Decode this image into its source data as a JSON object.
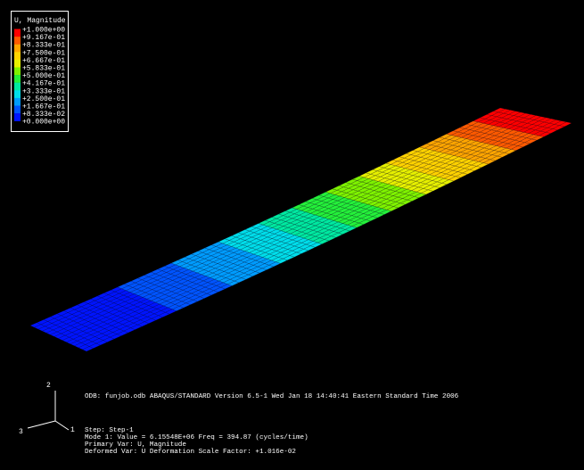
{
  "background_color": "#000000",
  "legend": {
    "title": "U, Magnitude",
    "labels": [
      "+1.000e+00",
      "+9.167e-01",
      "+8.333e-01",
      "+7.500e-01",
      "+6.667e-01",
      "+5.833e-01",
      "+5.000e-01",
      "+4.167e-01",
      "+3.333e-01",
      "+2.500e-01",
      "+1.667e-01",
      "+8.333e-02",
      "+0.000e+00"
    ],
    "colors": [
      "#ff0000",
      "#ff5a00",
      "#ffa500",
      "#ffd200",
      "#e6f000",
      "#7ef200",
      "#24f03a",
      "#00e8a0",
      "#00ddea",
      "#009cff",
      "#0054ff",
      "#0014ff"
    ]
  },
  "info": {
    "line1": "ODB: funjob.odb    ABAQUS/STANDARD Version 6.5-1    Wed Jan 18 14:40:41 Eastern Standard Time 2006",
    "line2": "Step: Step-1",
    "line3": "Mode    1: Value =  6.15548E+06 Freq =    394.87      (cycles/time)",
    "line4": "Primary Var: U, Magnitude",
    "line5": "Deformed Var: U   Deformation Scale Factor: +1.016e-02"
  },
  "triad": {
    "axis1": "1",
    "axis2": "2",
    "axis3": "3"
  },
  "plate": {
    "mesh_color": "#0a0a20",
    "divisions_along": 70,
    "divisions_across": 14
  }
}
